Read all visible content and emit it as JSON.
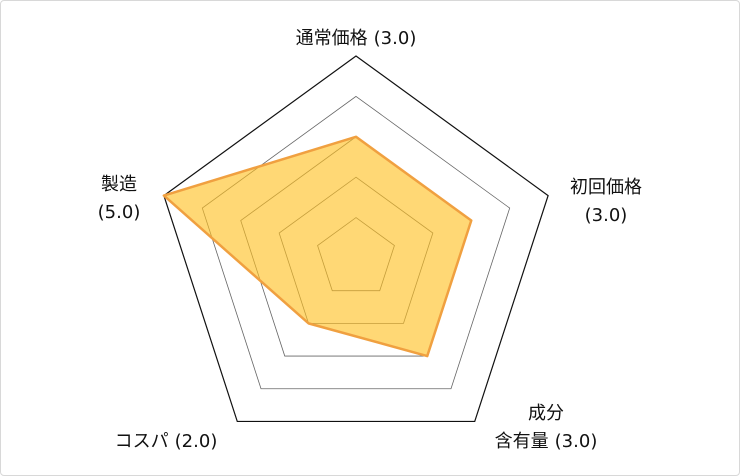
{
  "chart_data": {
    "type": "radar",
    "categories": [
      "通常価格",
      "初回価格",
      "成分\n含有量",
      "コスパ",
      "製造"
    ],
    "values": [
      3,
      3,
      3,
      2,
      5
    ],
    "value_labels": [
      "(3.0)",
      "(3.0)",
      "(3.0)",
      "(2.0)",
      "(5.0)"
    ],
    "rlim": [
      0,
      5
    ],
    "rticks": [
      1,
      2,
      3,
      4,
      5
    ],
    "grid": true,
    "color": "#ffc020",
    "edge_color": "#f0a040"
  }
}
